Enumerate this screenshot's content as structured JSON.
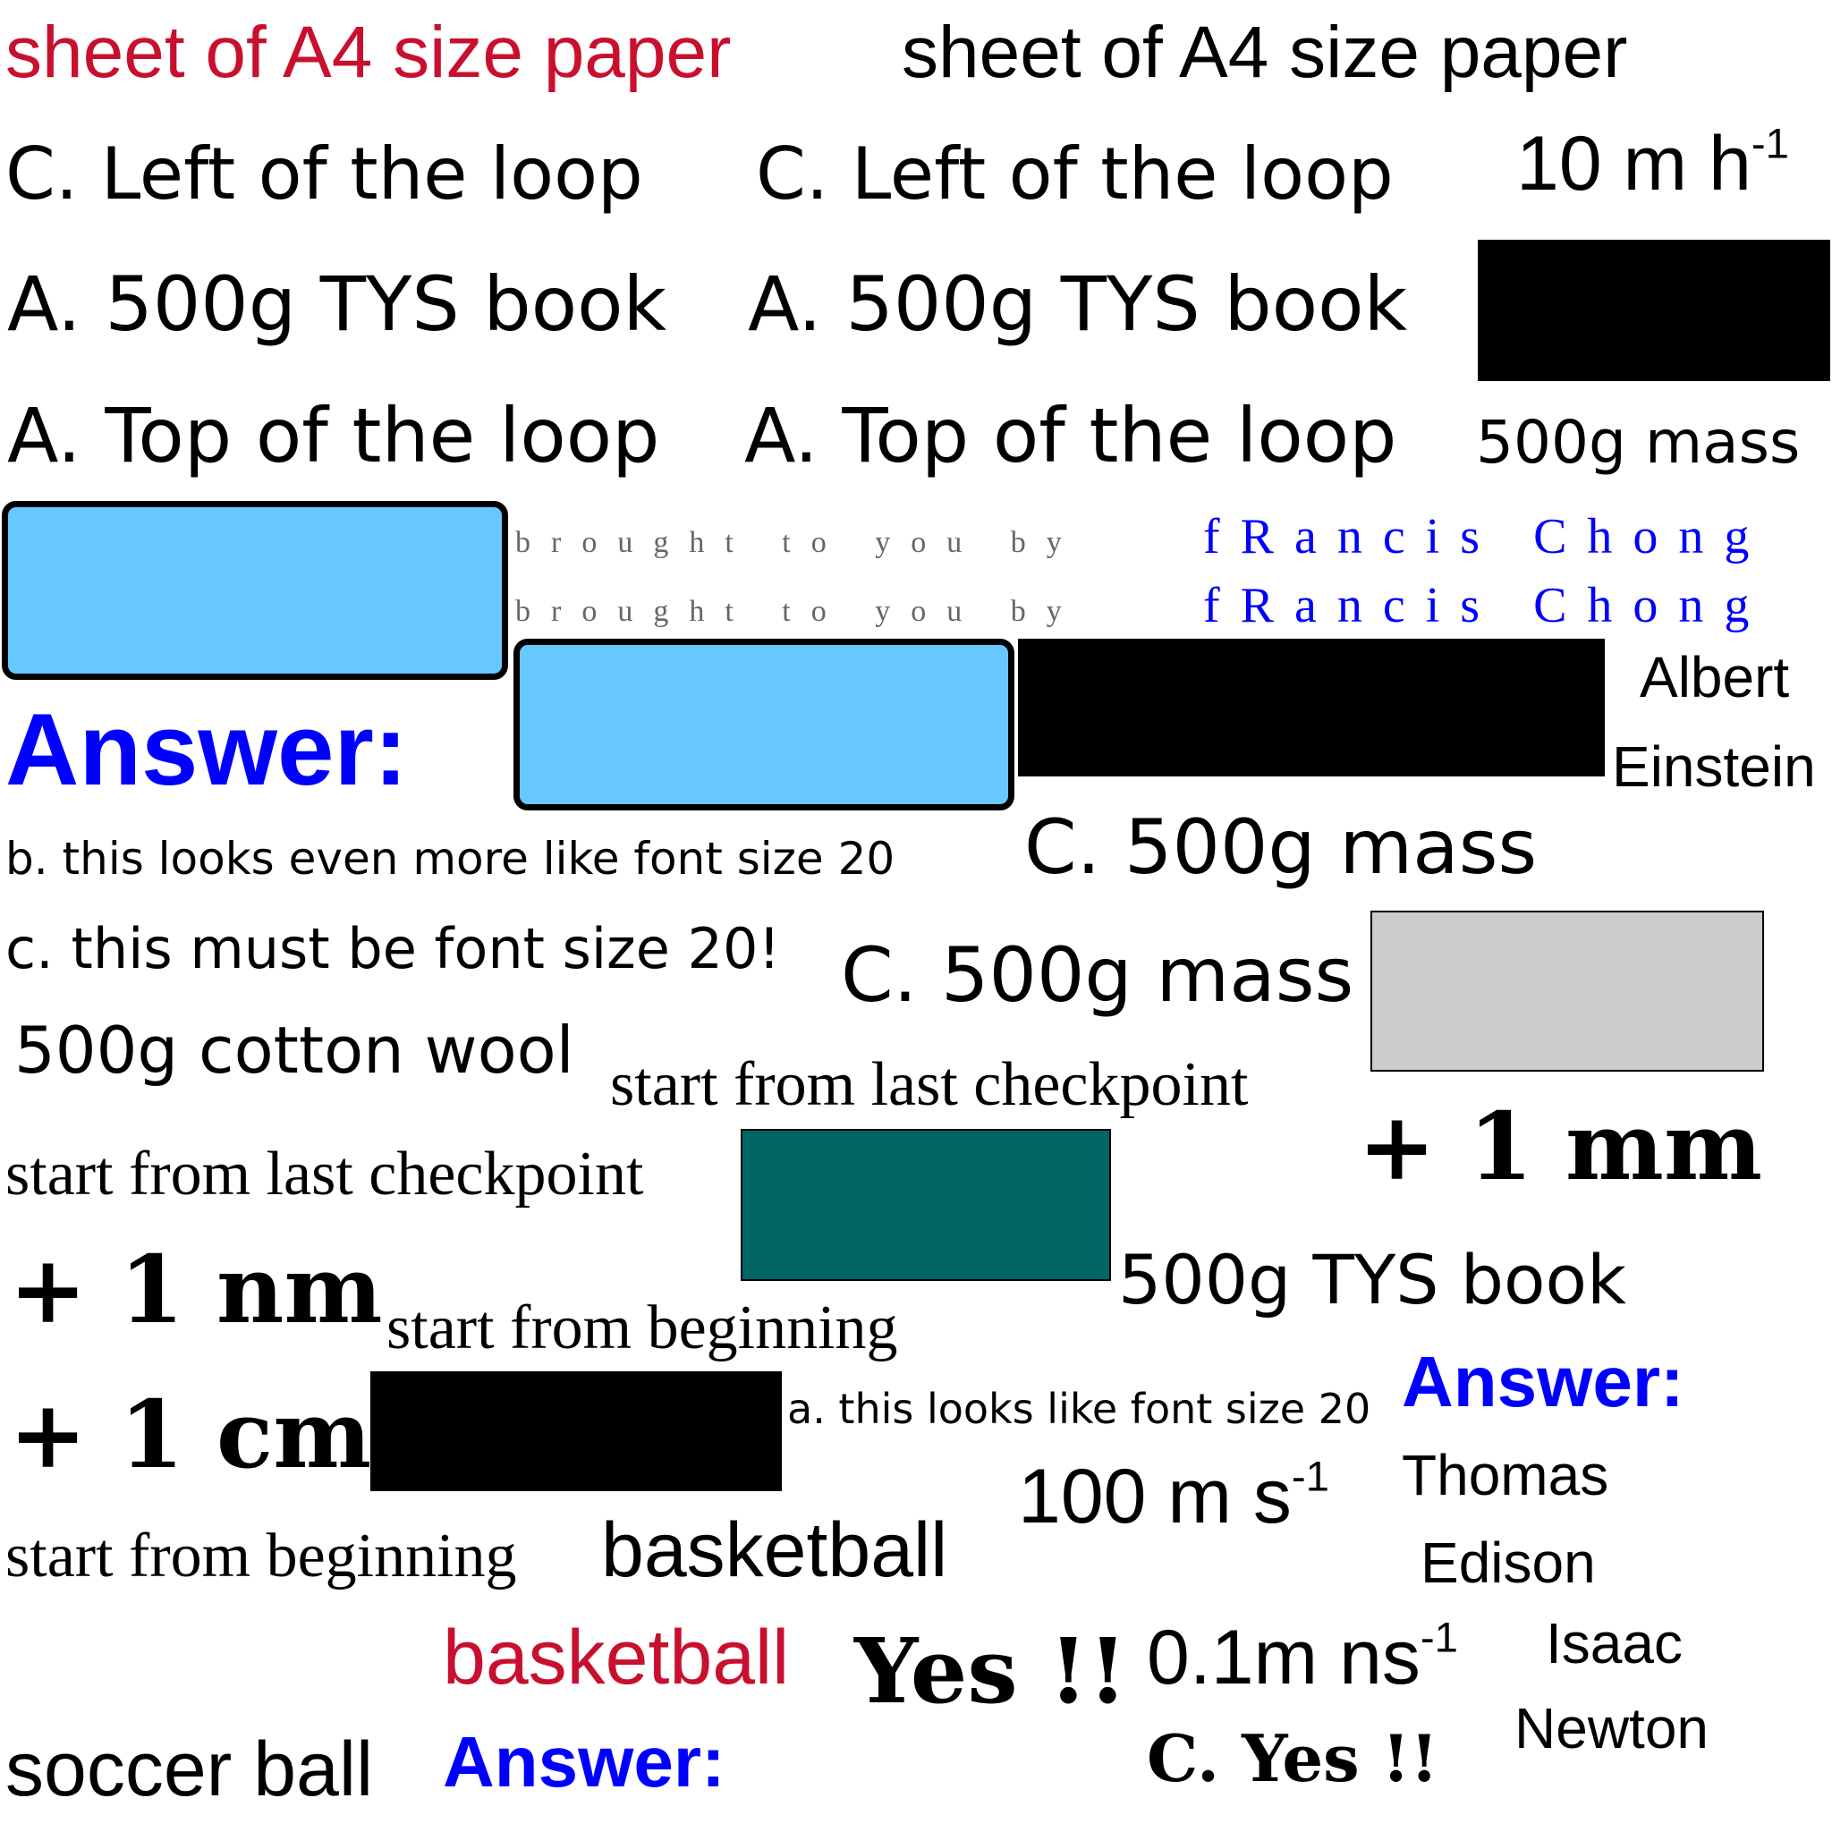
{
  "colors": {
    "red": "#c8102e",
    "blue": "#0000ff",
    "gray_text": "#666666",
    "light_blue": "#66c8ff",
    "teal": "#006666",
    "light_gray": "#cccccc",
    "black": "#000000"
  },
  "labels": {
    "a4_red": "sheet of A4 size paper",
    "a4_black": "sheet of A4 size paper",
    "left_loop_1": "C. Left of the loop",
    "left_loop_2": "C. Left of the loop",
    "speed_h_value": "10 m h",
    "speed_h_exp": "-1",
    "tys_book_1": "A. 500g TYS book",
    "tys_book_2": "A. 500g TYS book",
    "top_loop_1": "A. Top of the loop",
    "top_loop_2": "A. Top of the loop",
    "mass_500g": "500g mass",
    "brought_by": "brought to you by",
    "francis": "fRancis Chong",
    "albert": "Albert",
    "einstein": "Einstein",
    "answer_1": "Answer:",
    "font_b": "b. this looks even more like font size 20",
    "mass_c_1": "C. 500g mass",
    "font_c": "c. this must be font size 20!",
    "mass_c_2": "C. 500g mass",
    "cotton": "500g cotton wool",
    "checkpoint_1": "start from last checkpoint",
    "plus_mm": "+ 1 mm",
    "checkpoint_2": "start from last checkpoint",
    "plus_nm": "+ 1 nm",
    "beginning_1": "start from beginning",
    "tys_book_3": "500g TYS book",
    "answer_2": "Answer:",
    "plus_cm": "+ 1 cm",
    "font_a": "a. this looks like font size 20",
    "thomas": "Thomas",
    "speed_s_value": "100 m s",
    "speed_s_exp": "-1",
    "edison": "Edison",
    "beginning_2": "start from beginning",
    "basketball_1": "basketball",
    "basketball_2": "basketball",
    "yes": "Yes !!",
    "speed_ns_value": "0.1m ns",
    "speed_ns_exp": "-1",
    "isaac": "Isaac",
    "newton": "Newton",
    "soccer": "soccer ball",
    "answer_3": "Answer:",
    "c_yes": "C. Yes !!"
  }
}
